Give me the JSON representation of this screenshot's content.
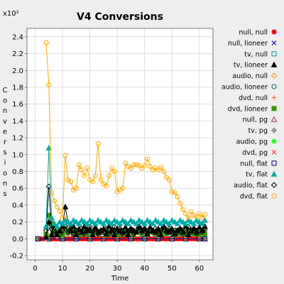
{
  "chart_data": {
    "type": "line",
    "title": "V4 Conversions",
    "xlabel": "Time",
    "ylabel": "Conversions",
    "y_multiplier": "x10²",
    "xlim": [
      -3,
      65
    ],
    "ylim": [
      -0.25,
      2.5
    ],
    "xticks": [
      0,
      10,
      20,
      30,
      40,
      50,
      60
    ],
    "yticks": [
      -0.2,
      0.0,
      0.2,
      0.4,
      0.6,
      0.8,
      1.0,
      1.2,
      1.4,
      1.6,
      1.8,
      2.0,
      2.2,
      2.4
    ],
    "grid": true,
    "legend_position": "right",
    "series": [
      {
        "name": "null, null",
        "color": "#ff0000",
        "marker": "dot",
        "x": [
          1,
          2,
          3,
          4,
          5,
          6,
          7,
          8,
          9,
          10,
          11,
          12,
          13,
          14,
          15,
          16,
          17,
          18,
          19,
          20,
          21,
          22,
          23,
          24,
          25,
          26,
          27,
          28,
          29,
          30,
          31,
          32,
          33,
          34,
          35,
          36,
          37,
          38,
          39,
          40,
          41,
          42,
          43,
          44,
          45,
          46,
          47,
          48,
          49,
          50,
          51,
          52,
          53,
          54,
          55,
          56,
          57,
          58,
          59,
          60,
          61,
          62
        ],
        "y": [
          0,
          0,
          0,
          0,
          0,
          0,
          0,
          0,
          0,
          0,
          0,
          0,
          0,
          0,
          0,
          0,
          0,
          0,
          0,
          0,
          0,
          0,
          0,
          0,
          0,
          0,
          0,
          0,
          0,
          0,
          0,
          0,
          0,
          0,
          0,
          0,
          0,
          0,
          0,
          0,
          0,
          0,
          0,
          0,
          0,
          0,
          0,
          0,
          0,
          0,
          0,
          0,
          0,
          0,
          0,
          0,
          0,
          0,
          0,
          0,
          0,
          0
        ]
      },
      {
        "name": "null, lioneer",
        "color": "#0000cc",
        "marker": "x",
        "x": [
          1,
          5,
          10,
          15,
          20,
          25,
          30,
          35,
          40,
          45,
          50,
          55,
          60,
          62
        ],
        "y": [
          0,
          0,
          0,
          0,
          0,
          0,
          0,
          0,
          0,
          0,
          0,
          0,
          0,
          0
        ]
      },
      {
        "name": "tv, null",
        "color": "#009999",
        "marker": "square",
        "x": [
          1,
          5,
          10,
          15,
          20,
          25,
          30,
          35,
          40,
          45,
          50,
          55,
          60,
          62
        ],
        "y": [
          0,
          0,
          0,
          0,
          0,
          0,
          0,
          0,
          0,
          0,
          0,
          0,
          0,
          0
        ]
      },
      {
        "name": "tv, lioneer",
        "color": "#000000",
        "marker": "triangle-filled",
        "x": [
          4,
          5,
          6,
          7,
          8,
          9,
          10,
          11,
          12,
          13,
          14,
          15,
          16,
          17,
          18,
          19,
          20,
          21,
          22,
          23,
          24,
          25,
          26,
          27,
          28,
          29,
          30,
          31,
          32,
          33,
          34,
          35,
          36,
          37,
          38,
          39,
          40,
          41,
          42,
          43,
          44,
          45,
          46,
          47,
          48,
          49,
          50,
          51,
          52,
          53,
          54,
          55,
          56,
          57,
          58,
          59,
          60,
          61,
          62
        ],
        "y": [
          0.02,
          0.2,
          0.05,
          0.15,
          0.05,
          0.1,
          0.15,
          0.38,
          0.2,
          0.1,
          0.15,
          0.05,
          0.12,
          0.08,
          0.15,
          0.1,
          0.12,
          0.05,
          0.14,
          0.08,
          0.1,
          0.12,
          0.06,
          0.15,
          0.1,
          0.05,
          0.12,
          0.1,
          0.08,
          0.14,
          0.05,
          0.12,
          0.1,
          0.08,
          0.15,
          0.1,
          0.12,
          0.06,
          0.14,
          0.1,
          0.08,
          0.12,
          0.05,
          0.15,
          0.1,
          0.08,
          0.12,
          0.06,
          0.1,
          0.12,
          0.08,
          0.15,
          0.05,
          0.1,
          0.12,
          0.08,
          0.14,
          0.1,
          0.15
        ]
      },
      {
        "name": "audio, null",
        "color": "#ff9900",
        "marker": "diamond",
        "x": [
          1,
          5,
          10,
          15,
          20,
          25,
          30,
          35,
          40,
          45,
          50,
          55,
          60,
          62
        ],
        "y": [
          0,
          0,
          0,
          0,
          0,
          0,
          0,
          0,
          0,
          0,
          0,
          0,
          0,
          0
        ]
      },
      {
        "name": "audio, lioneer",
        "color": "#006666",
        "marker": "circle",
        "x": [
          1,
          5,
          10,
          15,
          20,
          25,
          30,
          35,
          40,
          45,
          50,
          55,
          60,
          62
        ],
        "y": [
          0,
          0,
          0,
          0,
          0,
          0,
          0,
          0,
          0,
          0,
          0,
          0,
          0,
          0
        ]
      },
      {
        "name": "dvd, null",
        "color": "#ff6600",
        "marker": "plus",
        "x": [
          1,
          5,
          10,
          15,
          20,
          25,
          30,
          35,
          40,
          45,
          50,
          55,
          60,
          62
        ],
        "y": [
          0,
          0,
          0,
          0,
          0,
          0,
          0,
          0,
          0,
          0,
          0,
          0,
          0,
          0
        ]
      },
      {
        "name": "dvd, lioneer",
        "color": "#339900",
        "marker": "square-filled",
        "x": [
          4,
          5,
          6,
          7,
          8,
          9,
          10,
          11,
          12,
          13,
          14,
          15,
          16,
          17,
          18,
          19,
          20,
          21,
          22,
          23,
          24,
          25,
          26,
          27,
          28,
          29,
          30,
          31,
          32,
          33,
          34,
          35,
          36,
          37,
          38,
          39,
          40,
          41,
          42,
          43,
          44,
          45,
          46,
          47,
          48,
          49,
          50,
          51,
          52,
          53,
          54,
          55,
          56,
          57,
          58,
          59,
          60,
          61,
          62
        ],
        "y": [
          0.05,
          0.28,
          0.18,
          0.1,
          0.05,
          0.08,
          0.05,
          0.12,
          0.08,
          0.1,
          0.06,
          0.1,
          0.08,
          0.05,
          0.1,
          0.06,
          0.08,
          0.05,
          0.1,
          0.06,
          0.08,
          0.1,
          0.05,
          0.08,
          0.06,
          0.1,
          0.08,
          0.05,
          0.1,
          0.06,
          0.08,
          0.1,
          0.05,
          0.08,
          0.1,
          0.06,
          0.08,
          0.05,
          0.1,
          0.08,
          0.06,
          0.1,
          0.05,
          0.08,
          0.06,
          0.1,
          0.08,
          0.05,
          0.1,
          0.06,
          0.08,
          0.05,
          0.1,
          0.08,
          0.06,
          0.1,
          0.05,
          0.08,
          0.06
        ]
      },
      {
        "name": "null, pg",
        "color": "#993333",
        "marker": "triangle",
        "x": [
          1,
          5,
          10,
          15,
          20,
          25,
          30,
          35,
          40,
          45,
          50,
          55,
          60,
          62
        ],
        "y": [
          0,
          0,
          0,
          0,
          0,
          0,
          0,
          0,
          0,
          0,
          0,
          0,
          0,
          0
        ]
      },
      {
        "name": "tv, pg",
        "color": "#999999",
        "marker": "diamond-filled",
        "x": [
          4,
          6,
          8,
          10,
          12,
          14,
          16,
          18,
          20,
          22,
          24,
          26,
          28,
          30,
          32,
          34,
          36,
          38,
          40,
          42,
          44,
          46,
          48,
          50,
          52,
          54,
          56,
          58,
          60,
          62
        ],
        "y": [
          0,
          0.05,
          0.03,
          0.08,
          0.05,
          0.1,
          0.06,
          0.08,
          0.05,
          0.1,
          0.06,
          0.08,
          0.05,
          0.1,
          0.06,
          0.08,
          0.05,
          0.1,
          0.06,
          0.08,
          0.05,
          0.1,
          0.06,
          0.08,
          0.05,
          0.1,
          0.06,
          0.08,
          0.05,
          0.1
        ]
      },
      {
        "name": "audio, pg",
        "color": "#33ff33",
        "marker": "dot",
        "x": [
          1,
          5,
          10,
          15,
          20,
          25,
          30,
          35,
          40,
          45,
          50,
          55,
          60,
          62
        ],
        "y": [
          0,
          0,
          0,
          0,
          0,
          0,
          0,
          0,
          0,
          0,
          0,
          0,
          0,
          0
        ]
      },
      {
        "name": "dvd, pg",
        "color": "#ff3333",
        "marker": "x",
        "x": [
          1,
          5,
          10,
          15,
          20,
          25,
          30,
          35,
          40,
          45,
          50,
          55,
          60,
          62
        ],
        "y": [
          0,
          0,
          0,
          0,
          0,
          0,
          0,
          0,
          0,
          0,
          0,
          0,
          0,
          0
        ]
      },
      {
        "name": "null, flat",
        "color": "#000099",
        "marker": "square",
        "x": [
          1,
          5,
          10,
          15,
          20,
          25,
          30,
          35,
          40,
          45,
          50,
          55,
          60,
          62
        ],
        "y": [
          0,
          0,
          0,
          0,
          0,
          0,
          0,
          0,
          0,
          0,
          0,
          0,
          0,
          0
        ]
      },
      {
        "name": "tv, flat",
        "color": "#00aaaa",
        "marker": "triangle-filled",
        "x": [
          4,
          5,
          6,
          7,
          8,
          9,
          10,
          11,
          12,
          13,
          14,
          15,
          16,
          17,
          18,
          19,
          20,
          21,
          22,
          23,
          24,
          25,
          26,
          27,
          28,
          29,
          30,
          31,
          32,
          33,
          34,
          35,
          36,
          37,
          38,
          39,
          40,
          41,
          42,
          43,
          44,
          45,
          46,
          47,
          48,
          49,
          50,
          51,
          52,
          53,
          54,
          55,
          56,
          57,
          58,
          59,
          60,
          61,
          62
        ],
        "y": [
          0.15,
          1.08,
          0.25,
          0.18,
          0.15,
          0.2,
          0.18,
          0.22,
          0.2,
          0.18,
          0.22,
          0.2,
          0.18,
          0.22,
          0.2,
          0.18,
          0.22,
          0.2,
          0.18,
          0.22,
          0.2,
          0.18,
          0.22,
          0.2,
          0.18,
          0.22,
          0.2,
          0.18,
          0.22,
          0.2,
          0.18,
          0.22,
          0.2,
          0.18,
          0.22,
          0.2,
          0.18,
          0.22,
          0.2,
          0.18,
          0.22,
          0.2,
          0.18,
          0.22,
          0.2,
          0.18,
          0.22,
          0.2,
          0.18,
          0.22,
          0.2,
          0.18,
          0.22,
          0.2,
          0.18,
          0.22,
          0.2,
          0.18,
          0.22
        ]
      },
      {
        "name": "audio, flat",
        "color": "#000000",
        "marker": "diamond",
        "x": [
          4,
          5,
          6,
          7,
          8,
          9,
          10,
          11,
          12,
          13,
          14,
          15,
          16,
          17,
          18,
          19,
          20,
          21,
          22,
          23,
          24,
          25,
          26,
          27,
          28,
          29,
          30,
          31,
          32,
          33,
          34,
          35,
          36,
          37,
          38,
          39,
          40,
          41,
          42,
          43,
          44,
          45,
          46,
          47,
          48,
          49,
          50,
          51,
          52,
          53,
          54,
          55,
          56,
          57,
          58,
          59,
          60,
          61,
          62
        ],
        "y": [
          0.1,
          0.62,
          0.12,
          0.05,
          0.1,
          0.06,
          0.1,
          0.15,
          0.08,
          0.12,
          0.06,
          0.1,
          0.08,
          0.12,
          0.06,
          0.1,
          0.14,
          0.08,
          0.12,
          0.06,
          0.1,
          0.08,
          0.12,
          0.06,
          0.1,
          0.14,
          0.08,
          0.12,
          0.06,
          0.1,
          0.08,
          0.12,
          0.06,
          0.1,
          0.14,
          0.08,
          0.12,
          0.06,
          0.1,
          0.08,
          0.12,
          0.06,
          0.1,
          0.14,
          0.08,
          0.12,
          0.06,
          0.1,
          0.08,
          0.12,
          0.06,
          0.1,
          0.14,
          0.08,
          0.12,
          0.06,
          0.1,
          0.08,
          0.12
        ]
      },
      {
        "name": "dvd, flat",
        "color": "#ffaa00",
        "marker": "circle",
        "x": [
          4,
          5,
          6,
          7,
          8,
          9,
          10,
          11,
          12,
          13,
          14,
          15,
          16,
          17,
          18,
          19,
          20,
          21,
          22,
          23,
          24,
          25,
          26,
          27,
          28,
          29,
          30,
          31,
          32,
          33,
          34,
          35,
          36,
          37,
          38,
          39,
          40,
          41,
          42,
          43,
          44,
          45,
          46,
          47,
          48,
          49,
          50,
          51,
          52,
          53,
          54,
          55,
          56,
          57,
          58,
          59,
          60,
          61,
          62
        ],
        "y": [
          2.33,
          1.83,
          0.55,
          0.45,
          0.38,
          0.33,
          0.25,
          0.99,
          0.7,
          0.68,
          0.58,
          0.6,
          0.88,
          0.82,
          0.75,
          0.84,
          0.7,
          0.68,
          0.75,
          1.13,
          0.7,
          0.65,
          0.63,
          0.75,
          0.84,
          0.8,
          0.56,
          0.58,
          0.6,
          0.9,
          0.86,
          0.84,
          0.88,
          0.88,
          0.87,
          0.84,
          0.87,
          0.95,
          0.86,
          0.82,
          0.84,
          0.82,
          0.85,
          0.8,
          0.73,
          0.7,
          0.56,
          0.55,
          0.5,
          0.42,
          0.35,
          0.3,
          0.25,
          0.32,
          0.28,
          0.26,
          0.3,
          0.25,
          0.29
        ]
      }
    ]
  }
}
